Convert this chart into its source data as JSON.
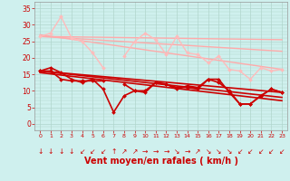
{
  "background_color": "#cff0ee",
  "grid_color": "#b0d5cc",
  "xlabel": "Vent moyen/en rafales ( km/h )",
  "xlabel_color": "#cc0000",
  "xlabel_fontsize": 7,
  "ylim": [
    -2,
    37
  ],
  "xlim": [
    -0.5,
    23.5
  ],
  "lines": [
    {
      "x": [
        0,
        23
      ],
      "y": [
        27.0,
        16.5
      ],
      "color": "#ffaaaa",
      "lw": 1.0,
      "marker": null
    },
    {
      "x": [
        0,
        23
      ],
      "y": [
        26.5,
        25.5
      ],
      "color": "#ffaaaa",
      "lw": 1.0,
      "marker": null
    },
    {
      "x": [
        0,
        23
      ],
      "y": [
        26.5,
        22.0
      ],
      "color": "#ffaaaa",
      "lw": 1.0,
      "marker": null
    },
    {
      "x": [
        0,
        1,
        2,
        3,
        4,
        5,
        6,
        7,
        8,
        9,
        10,
        11,
        12,
        13,
        14,
        15,
        16,
        17,
        18,
        19,
        20,
        21,
        22,
        23
      ],
      "y": [
        26.5,
        27.5,
        32.5,
        26.0,
        25.0,
        21.5,
        17.0,
        null,
        20.5,
        25.0,
        27.5,
        25.5,
        21.0,
        26.5,
        21.5,
        21.0,
        18.5,
        20.5,
        16.5,
        16.0,
        13.5,
        17.0,
        16.0,
        16.5
      ],
      "color": "#ffbbbb",
      "lw": 1.0,
      "marker": "D",
      "markersize": 2.0
    },
    {
      "x": [
        0,
        23
      ],
      "y": [
        16.0,
        9.5
      ],
      "color": "#cc0000",
      "lw": 1.2,
      "marker": null
    },
    {
      "x": [
        0,
        23
      ],
      "y": [
        16.0,
        8.0
      ],
      "color": "#cc0000",
      "lw": 1.2,
      "marker": null
    },
    {
      "x": [
        0,
        23
      ],
      "y": [
        15.5,
        7.0
      ],
      "color": "#cc0000",
      "lw": 1.2,
      "marker": null
    },
    {
      "x": [
        0,
        1,
        2,
        3,
        4,
        5,
        6,
        7,
        8,
        9,
        10,
        11,
        12,
        13,
        14,
        15,
        16,
        17,
        18,
        19,
        20,
        21,
        22,
        23
      ],
      "y": [
        16.0,
        17.0,
        15.5,
        13.5,
        12.5,
        13.5,
        10.5,
        3.5,
        8.5,
        10.0,
        10.0,
        12.5,
        12.0,
        10.5,
        11.5,
        11.0,
        13.5,
        13.5,
        9.5,
        6.0,
        6.0,
        8.5,
        10.5,
        9.5
      ],
      "color": "#cc0000",
      "lw": 1.2,
      "marker": "D",
      "markersize": 2.0
    },
    {
      "x": [
        0,
        1,
        2,
        3,
        4,
        5,
        6,
        7,
        8,
        9,
        10,
        11,
        12,
        13,
        14,
        15,
        16,
        17,
        18,
        19,
        20,
        21,
        22,
        23
      ],
      "y": [
        16.0,
        16.0,
        13.5,
        13.0,
        13.0,
        13.0,
        13.0,
        null,
        12.0,
        10.0,
        9.5,
        12.5,
        12.0,
        11.0,
        11.0,
        10.5,
        13.5,
        12.5,
        10.0,
        6.0,
        6.0,
        8.5,
        10.5,
        9.5
      ],
      "color": "#cc0000",
      "lw": 1.2,
      "marker": "D",
      "markersize": 2.0
    }
  ],
  "wind_symbols": [
    "↓",
    "↓",
    "↓",
    "↓",
    "↙",
    "↙",
    "↙",
    "↑",
    "↗",
    "↗",
    "→",
    "→",
    "→",
    "↘",
    "→",
    "↗",
    "↘",
    "↘",
    "↘",
    "↙",
    "↙",
    "↙",
    "↙",
    "↙"
  ],
  "wind_color": "#cc0000",
  "wind_fontsize": 5.5
}
